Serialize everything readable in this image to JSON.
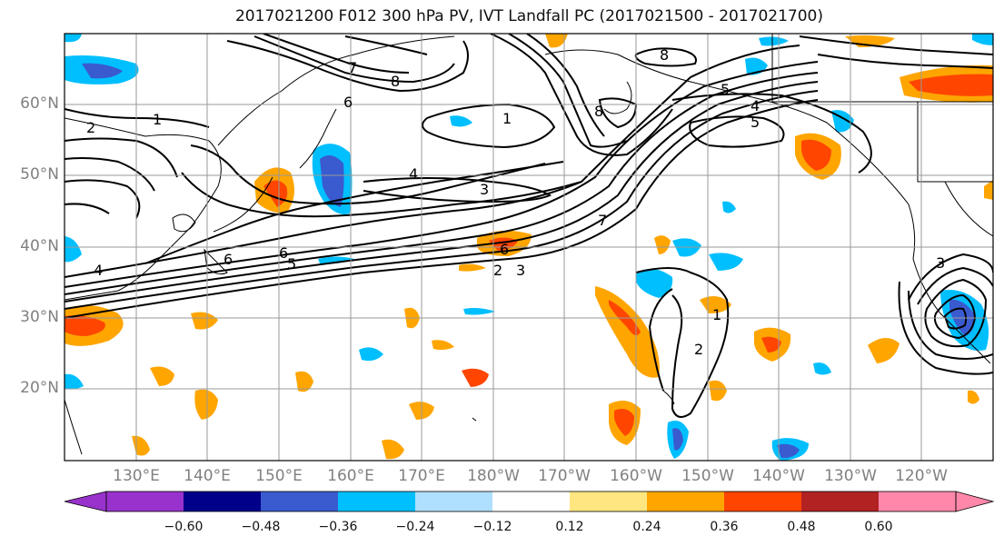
{
  "title": "2017021200 F012 300 hPa PV, IVT Landfall PC (2017021500 - 2017021700)",
  "latitude_labels": [
    "60°N",
    "50°N",
    "40°N",
    "30°N",
    "20°N"
  ],
  "longitude_labels": [
    "130°E",
    "140°E",
    "150°E",
    "160°E",
    "170°E",
    "180°W",
    "170°W",
    "160°W",
    "150°W",
    "140°W",
    "130°W",
    "120°W"
  ],
  "colorbar": {
    "ticks": [
      "−0.60",
      "−0.48",
      "−0.36",
      "−0.24",
      "−0.12",
      "0.12",
      "0.24",
      "0.36",
      "0.48",
      "0.60"
    ],
    "colors": [
      "#9932cc",
      "#00008b",
      "#3a5bcf",
      "#00bfff",
      "#b0e0ff",
      "#ffffff",
      "#ffe680",
      "#ffa500",
      "#ff4500",
      "#b22222",
      "#ff88aa"
    ]
  },
  "contour_labels": [
    "1",
    "2",
    "3",
    "4",
    "5",
    "6",
    "7",
    "8"
  ],
  "colors": {
    "land_outline": "#000000",
    "grid": "#999999",
    "contour": "#000000"
  }
}
